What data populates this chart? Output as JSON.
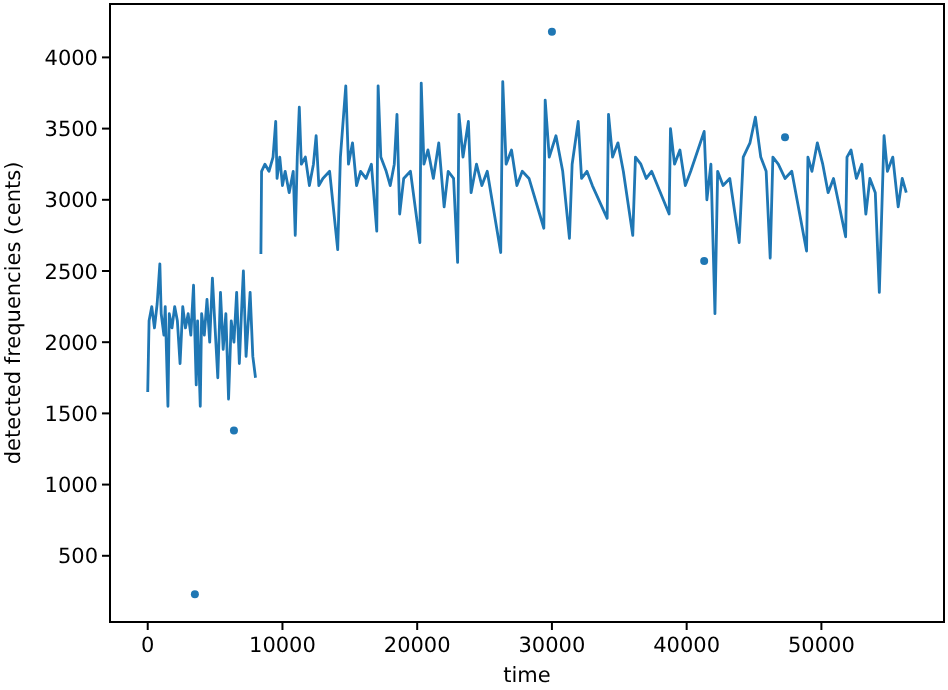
{
  "chart_data": {
    "type": "line",
    "xlabel": "time",
    "ylabel": "detected frequencies (cents)",
    "xlim": [
      -2800,
      59100
    ],
    "ylim": [
      35,
      4375
    ],
    "xticks": [
      0,
      10000,
      20000,
      30000,
      40000,
      50000
    ],
    "yticks": [
      500,
      1000,
      1500,
      2000,
      2500,
      3000,
      3500,
      4000
    ],
    "grid": false,
    "series": [
      {
        "type": "line",
        "color": "#1f77b4",
        "marker": "none",
        "x": [
          0,
          100,
          300,
          500,
          700,
          900,
          1000,
          1200,
          1300,
          1500,
          1600,
          1800,
          2000,
          2200,
          2400,
          2600,
          2800,
          3000,
          3200,
          3400,
          3600,
          3700,
          3900,
          4000,
          4200,
          4400,
          4600,
          4800,
          5000,
          5200,
          5400,
          5600,
          5800,
          6000,
          6200,
          6400,
          6600,
          6800,
          7000,
          7100,
          7300,
          7500,
          7600,
          7800,
          8000,
          8200,
          8400,
          8450,
          8700,
          9000,
          9300,
          9500,
          9600,
          9800,
          10000,
          10200,
          10500,
          10800,
          10950,
          11100,
          11250,
          11400,
          11700,
          12000,
          12300,
          12500,
          12700,
          13000,
          13500,
          14100,
          14300,
          14700,
          14900,
          15200,
          15500,
          15800,
          16200,
          16600,
          17000,
          17100,
          17300,
          17700,
          18000,
          18300,
          18500,
          18700,
          19000,
          19500,
          20200,
          20300,
          20500,
          20800,
          21200,
          21600,
          22000,
          22300,
          22700,
          23000,
          23100,
          23400,
          23800,
          24000,
          24400,
          24800,
          25200,
          26200,
          26350,
          26600,
          27000,
          27400,
          27800,
          28300,
          29400,
          29500,
          29800,
          30300,
          30800,
          31300,
          31500,
          31950,
          32200,
          32600,
          33000,
          34100,
          34200,
          34500,
          34900,
          35300,
          36000,
          36200,
          36600,
          37000,
          37400,
          38700,
          38800,
          39100,
          39500,
          39900,
          40300,
          41300,
          41500,
          41800,
          42100,
          42300,
          42700,
          43200,
          43900,
          44200,
          44700,
          45100,
          45500,
          45900,
          46200,
          46400,
          46800,
          47300,
          47800,
          48900,
          49000,
          49300,
          49700,
          50100,
          50500,
          50900,
          51800,
          51900,
          52200,
          52600,
          53000,
          53300,
          53600,
          54000,
          54300,
          54650,
          54900,
          55300,
          55700,
          56000,
          56300
        ],
        "values": [
          1650,
          2150,
          2250,
          2100,
          2270,
          2550,
          2200,
          2050,
          2250,
          1550,
          2200,
          2100,
          2250,
          2150,
          1850,
          2250,
          2100,
          2200,
          2050,
          2400,
          1700,
          2150,
          1550,
          2200,
          2050,
          2300,
          2000,
          2450,
          2100,
          1750,
          2350,
          1950,
          2200,
          1600,
          2150,
          2000,
          2350,
          1850,
          2300,
          2500,
          1900,
          2200,
          2350,
          1900,
          1750,
          null,
          2620,
          3200,
          3250,
          3200,
          3300,
          3550,
          3150,
          3300,
          3100,
          3200,
          3050,
          3200,
          2750,
          3300,
          3650,
          3250,
          3300,
          3100,
          3250,
          3450,
          3100,
          3150,
          3200,
          2650,
          3300,
          3800,
          3250,
          3400,
          3100,
          3200,
          3150,
          3250,
          2780,
          3800,
          3300,
          3200,
          3100,
          3250,
          3600,
          2900,
          3150,
          3200,
          2700,
          3820,
          3250,
          3350,
          3150,
          3400,
          2950,
          3200,
          3150,
          2560,
          3600,
          3300,
          3550,
          3050,
          3250,
          3100,
          3200,
          2630,
          3830,
          3250,
          3350,
          3100,
          3200,
          3150,
          2800,
          3700,
          3300,
          3450,
          3200,
          2730,
          3250,
          3550,
          3150,
          3200,
          3100,
          2870,
          3600,
          3300,
          3400,
          3200,
          2750,
          3300,
          3250,
          3150,
          3200,
          2900,
          3500,
          3250,
          3350,
          3100,
          3200,
          3480,
          3000,
          3250,
          2200,
          3200,
          3100,
          3150,
          2700,
          3300,
          3400,
          3580,
          3300,
          3200,
          2590,
          3300,
          3250,
          3150,
          3200,
          2640,
          3300,
          3200,
          3400,
          3250,
          3050,
          3150,
          2740,
          3300,
          3350,
          3150,
          3250,
          2900,
          3150,
          3050,
          2350,
          3450,
          3200,
          3300,
          2950,
          3150,
          3050
        ]
      },
      {
        "type": "scatter",
        "color": "#1f77b4",
        "marker": "circle",
        "x": [
          3500,
          6400,
          30000,
          41300,
          47300
        ],
        "values": [
          230,
          1380,
          4180,
          2570,
          3440
        ]
      }
    ]
  }
}
